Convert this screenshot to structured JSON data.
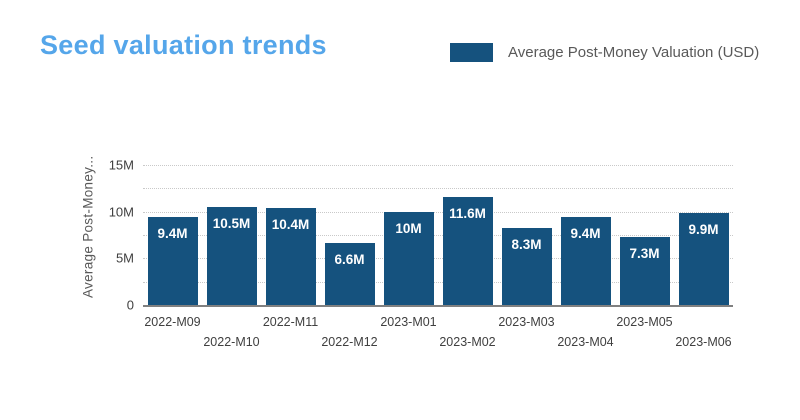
{
  "header": {
    "title": "Seed valuation trends",
    "legend": {
      "label": "Average Post-Money Valuation (USD)",
      "swatch_color": "#15527E"
    }
  },
  "chart_data": {
    "type": "bar",
    "title": "Seed valuation trends",
    "series_name": "Average Post-Money Valuation (USD)",
    "categories": [
      "2022-M09",
      "2022-M10",
      "2022-M11",
      "2022-M12",
      "2023-M01",
      "2023-M02",
      "2023-M03",
      "2023-M04",
      "2023-M05",
      "2023-M06"
    ],
    "values": [
      9.4,
      10.5,
      10.4,
      6.6,
      10,
      11.6,
      8.3,
      9.4,
      7.3,
      9.9
    ],
    "bar_labels": [
      "9.4M",
      "10.5M",
      "10.4M",
      "6.6M",
      "10M",
      "11.6M",
      "8.3M",
      "9.4M",
      "7.3M",
      "9.9M"
    ],
    "xlabel": "",
    "ylabel": "Average Post-Money...",
    "ylim": [
      0,
      15
    ],
    "y_ticks": [
      {
        "value": 0,
        "label": "0"
      },
      {
        "value": 5,
        "label": "5M"
      },
      {
        "value": 10,
        "label": "10M"
      },
      {
        "value": 15,
        "label": "15M"
      }
    ],
    "gridline_values": [
      2.5,
      5,
      7.5,
      10,
      12.5,
      15
    ],
    "grid": "dotted-horizontal",
    "legend_position": "top-right",
    "bar_color": "#15527E",
    "bar_label_color": "#ffffff"
  },
  "colors": {
    "title": "#55A6EA",
    "bar": "#15527E",
    "gridline": "#C9C9C9",
    "baseline": "#808080",
    "axis_text": "#595959",
    "tick_text": "#404040"
  }
}
